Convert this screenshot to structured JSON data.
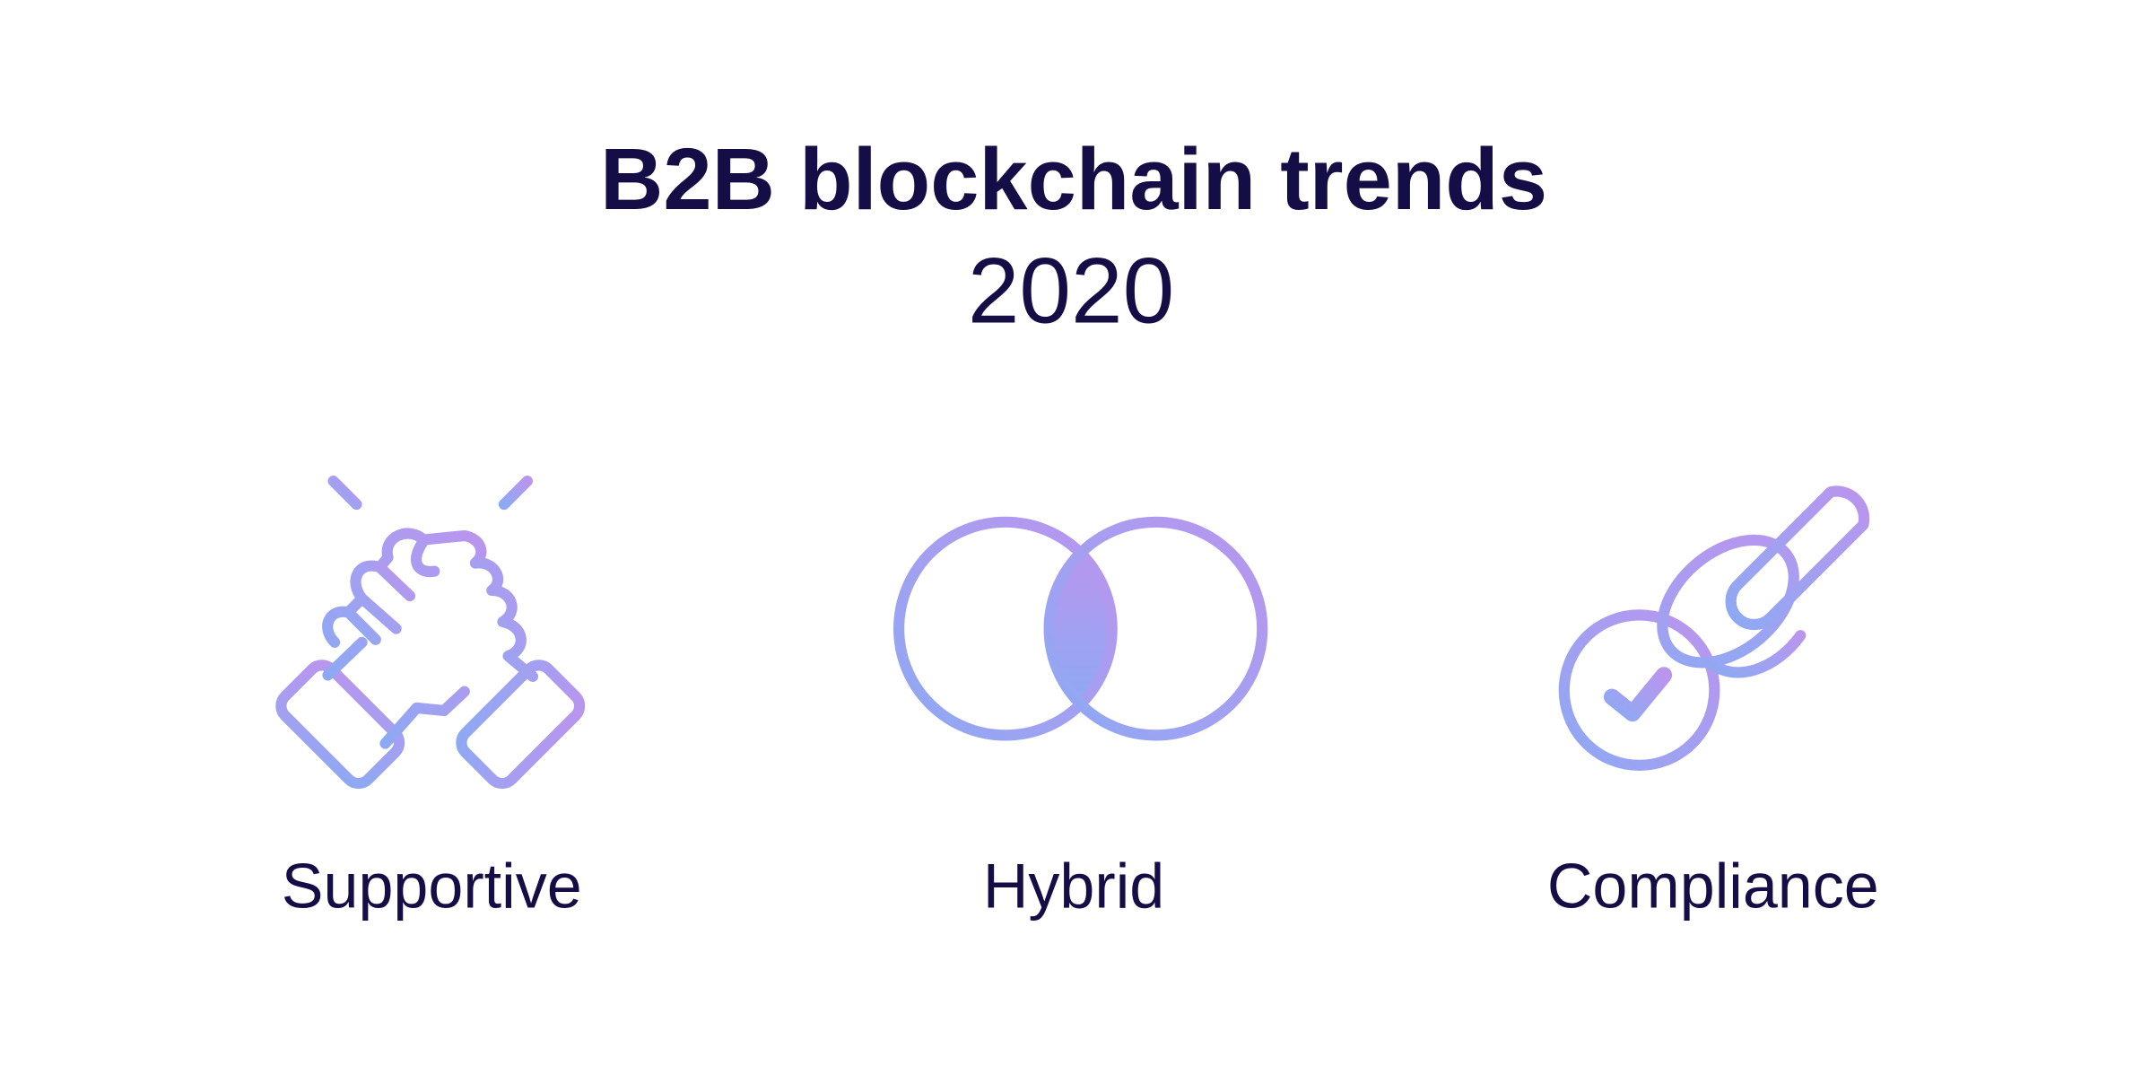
{
  "header": {
    "title": "B2B blockchain trends",
    "subtitle": "2020"
  },
  "items": [
    {
      "label": "Supportive"
    },
    {
      "label": "Hybrid"
    },
    {
      "label": "Compliance"
    }
  ]
}
